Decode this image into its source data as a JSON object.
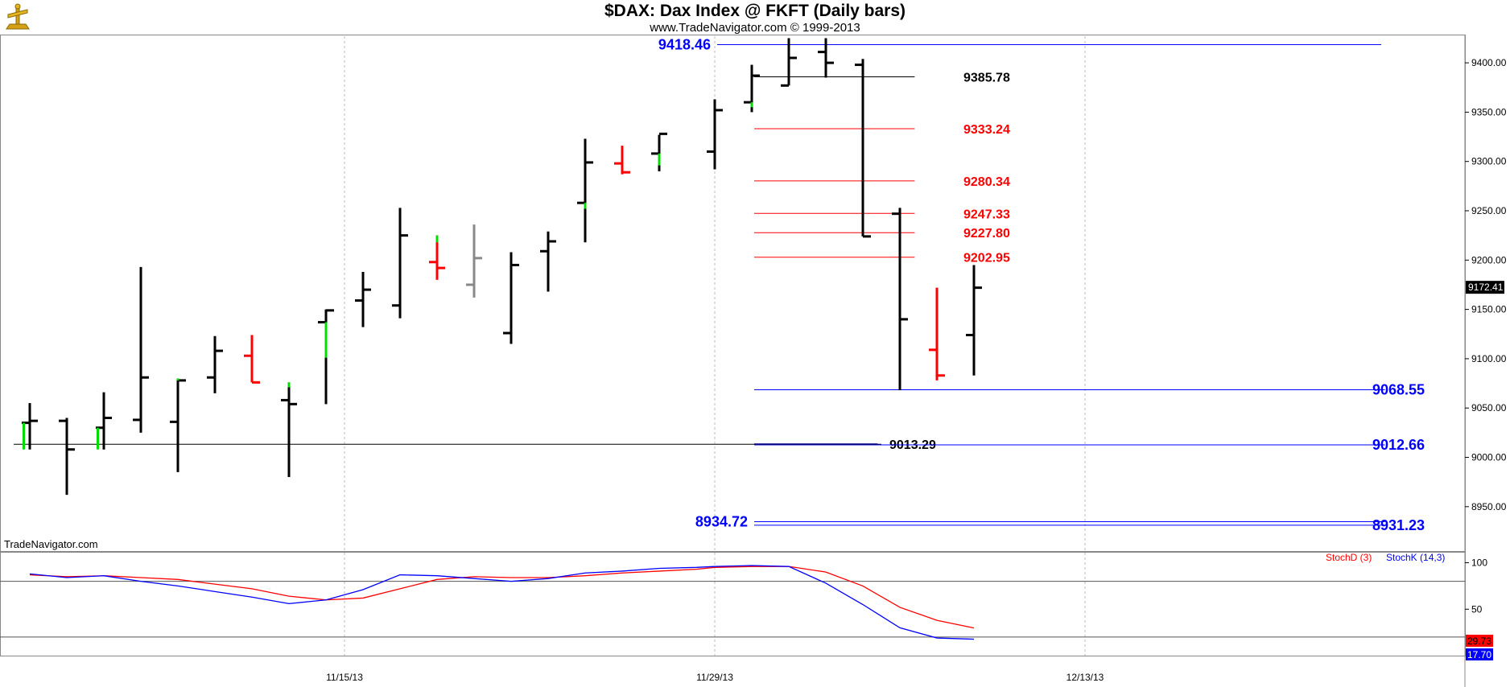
{
  "header": {
    "title": "$DAX:  Dax Index @ FKFT  (Daily bars)",
    "subtitle": "www.TradeNavigator.com © 1999-2013",
    "brand": "TradeNavigator.com"
  },
  "chart_data": {
    "type": "bar",
    "price_axis": {
      "ylim": [
        8905,
        9427
      ],
      "ticks": [
        "8950.00",
        "9000.00",
        "9050.00",
        "9100.00",
        "9150.00",
        "9200.00",
        "9250.00",
        "9300.00",
        "9350.00",
        "9400.00"
      ]
    },
    "date_axis": {
      "ticks": [
        {
          "label": "11/15/13",
          "at": 8.5
        },
        {
          "label": "11/29/13",
          "at": 18.5
        },
        {
          "label": "12/13/13",
          "at": 28.5
        }
      ]
    },
    "last_price": {
      "label": "9172.41",
      "value": 9172.41,
      "bg": "#000000",
      "fg": "#ffffff"
    },
    "bars": [
      {
        "o": 9035,
        "h": 9055,
        "l": 9008,
        "c": 9037,
        "color": "#000000",
        "green_tail": 9022
      },
      {
        "o": 9037,
        "h": 9040,
        "l": 8962,
        "c": 9008,
        "color": "#000000"
      },
      {
        "o": 9030,
        "h": 9066,
        "l": 9008,
        "c": 9040,
        "color": "#000000",
        "green_tail": 9022
      },
      {
        "o": 9038,
        "h": 9193,
        "l": 9025,
        "c": 9081,
        "color": "#000000"
      },
      {
        "o": 9036,
        "h": 9080,
        "l": 8985,
        "c": 9078,
        "color": "#000000",
        "green_top": 9078
      },
      {
        "o": 9081,
        "h": 9123,
        "l": 9065,
        "c": 9108,
        "color": "#000000"
      },
      {
        "o": 9103,
        "h": 9124,
        "l": 9076,
        "c": 9076,
        "color": "#ff0000"
      },
      {
        "o": 9058,
        "h": 9076,
        "l": 8980,
        "c": 9054,
        "color": "#000000",
        "green_top": 9071
      },
      {
        "o": 9137,
        "h": 9150,
        "l": 9054,
        "c": 9149,
        "color": "#000000",
        "green_low": 9101
      },
      {
        "o": 9159,
        "h": 9188,
        "l": 9132,
        "c": 9170,
        "color": "#000000"
      },
      {
        "o": 9154,
        "h": 9253,
        "l": 9141,
        "c": 9225,
        "color": "#000000"
      },
      {
        "o": 9198,
        "h": 9225,
        "l": 9180,
        "c": 9192,
        "color": "#ff0000",
        "green_top": 9218
      },
      {
        "o": 9175,
        "h": 9236,
        "l": 9162,
        "c": 9202,
        "color": "#888888"
      },
      {
        "o": 9126,
        "h": 9208,
        "l": 9115,
        "c": 9195,
        "color": "#000000"
      },
      {
        "o": 9209,
        "h": 9229,
        "l": 9168,
        "c": 9219,
        "color": "#000000"
      },
      {
        "o": 9258,
        "h": 9323,
        "l": 9218,
        "c": 9299,
        "color": "#000000",
        "green_low": 9252
      },
      {
        "o": 9298,
        "h": 9316,
        "l": 9287,
        "c": 9289,
        "color": "#ff0000"
      },
      {
        "o": 9308,
        "h": 9327,
        "l": 9290,
        "c": 9328,
        "color": "#000000",
        "green_low": 9296
      },
      {
        "o": 9360,
        "h": 9363,
        "l": 9355,
        "c": 9355,
        "color": "#000000",
        "skip": true
      },
      {
        "o": 9310,
        "h": 9363,
        "l": 9292,
        "c": 9352,
        "color": "#000000"
      },
      {
        "o": 9360,
        "h": 9398,
        "l": 9350,
        "c": 9387,
        "color": "#000000",
        "green_low": 9355
      },
      {
        "o": 9377,
        "h": 9425,
        "l": 9377,
        "c": 9405,
        "color": "#000000"
      },
      {
        "o": 9411,
        "h": 9425,
        "l": 9385,
        "c": 9400,
        "color": "#000000"
      },
      {
        "o": 9398,
        "h": 9404,
        "l": 9224,
        "c": 9224,
        "color": "#000000"
      },
      {
        "o": 9247,
        "h": 9253,
        "l": 9068,
        "c": 9140,
        "color": "#000000"
      },
      {
        "o": 9109,
        "h": 9172,
        "l": 9078,
        "c": 9083,
        "color": "#ff0000"
      },
      {
        "o": 9124,
        "h": 9195,
        "l": 9083,
        "c": 9172,
        "color": "#000000"
      }
    ],
    "levels": [
      {
        "label": "9418.46",
        "value": 9418.46,
        "color": "#0000ff",
        "x1": 19.0,
        "x2": 36.5,
        "label_side": "left",
        "size": 18
      },
      {
        "label": "9385.78",
        "value": 9385.78,
        "color": "#000000",
        "x1": 20.0,
        "x2": 23.9,
        "label_side": "right",
        "size": 16
      },
      {
        "label": "9333.24",
        "value": 9333.24,
        "color": "#ff0000",
        "x1": 20.0,
        "x2": 23.9,
        "label_side": "right",
        "size": 16
      },
      {
        "label": "9280.34",
        "value": 9280.34,
        "color": "#ff0000",
        "x1": 20.0,
        "x2": 23.9,
        "label_side": "right",
        "size": 16
      },
      {
        "label": "9247.33",
        "value": 9247.33,
        "color": "#ff0000",
        "x1": 20.0,
        "x2": 23.9,
        "label_side": "right",
        "size": 16
      },
      {
        "label": "9227.80",
        "value": 9227.8,
        "color": "#ff0000",
        "x1": 20.0,
        "x2": 23.9,
        "label_side": "right",
        "size": 16
      },
      {
        "label": "9202.95",
        "value": 9202.95,
        "color": "#ff0000",
        "x1": 20.0,
        "x2": 23.9,
        "label_side": "right",
        "size": 16
      },
      {
        "label": "9068.55",
        "value": 9068.55,
        "color": "#0000ff",
        "x1": 20.0,
        "x2": 36.6,
        "label_side": "right",
        "size": 18
      },
      {
        "label": "9013.29",
        "value": 9013.29,
        "color": "#000000",
        "x1": 0.0,
        "x2": 23.0,
        "label_side": "right",
        "size": 16
      },
      {
        "label": "9012.66",
        "value": 9012.66,
        "color": "#0000ff",
        "x1": 20.0,
        "x2": 36.6,
        "label_side": "right",
        "size": 18
      },
      {
        "label": "8934.72",
        "value": 8934.72,
        "color": "#0000ff",
        "x1": 20.0,
        "x2": 36.6,
        "label_side": "left",
        "size": 18
      },
      {
        "label": "8931.23",
        "value": 8931.23,
        "color": "#0000ff",
        "x1": 20.0,
        "x2": 36.6,
        "label_side": "right",
        "size": 18
      }
    ],
    "stochastic": {
      "ylim": [
        0,
        110
      ],
      "ticks": [
        "100",
        "50"
      ],
      "ref_lines": [
        80,
        20
      ],
      "legend": [
        {
          "label": "StochD (3)",
          "color": "#ff0000"
        },
        {
          "label": "StochK (14,3)",
          "color": "#0000ff"
        }
      ],
      "stoch_d": [
        87,
        85,
        86,
        84,
        82,
        77,
        72,
        64,
        60,
        62,
        72,
        82,
        85,
        84,
        84,
        86,
        89,
        91,
        93,
        95,
        96,
        96,
        90,
        75,
        52,
        38,
        29.73
      ],
      "stoch_k": [
        88,
        84,
        86,
        80,
        75,
        69,
        63,
        56,
        60,
        71,
        87,
        86,
        83,
        80,
        83,
        89,
        91,
        94,
        95,
        96,
        97,
        96,
        78,
        55,
        30,
        19,
        17.7
      ],
      "last_d": {
        "label": "29.73",
        "value": 29.73
      },
      "last_k": {
        "label": "17.70",
        "value": 17.7
      }
    }
  }
}
